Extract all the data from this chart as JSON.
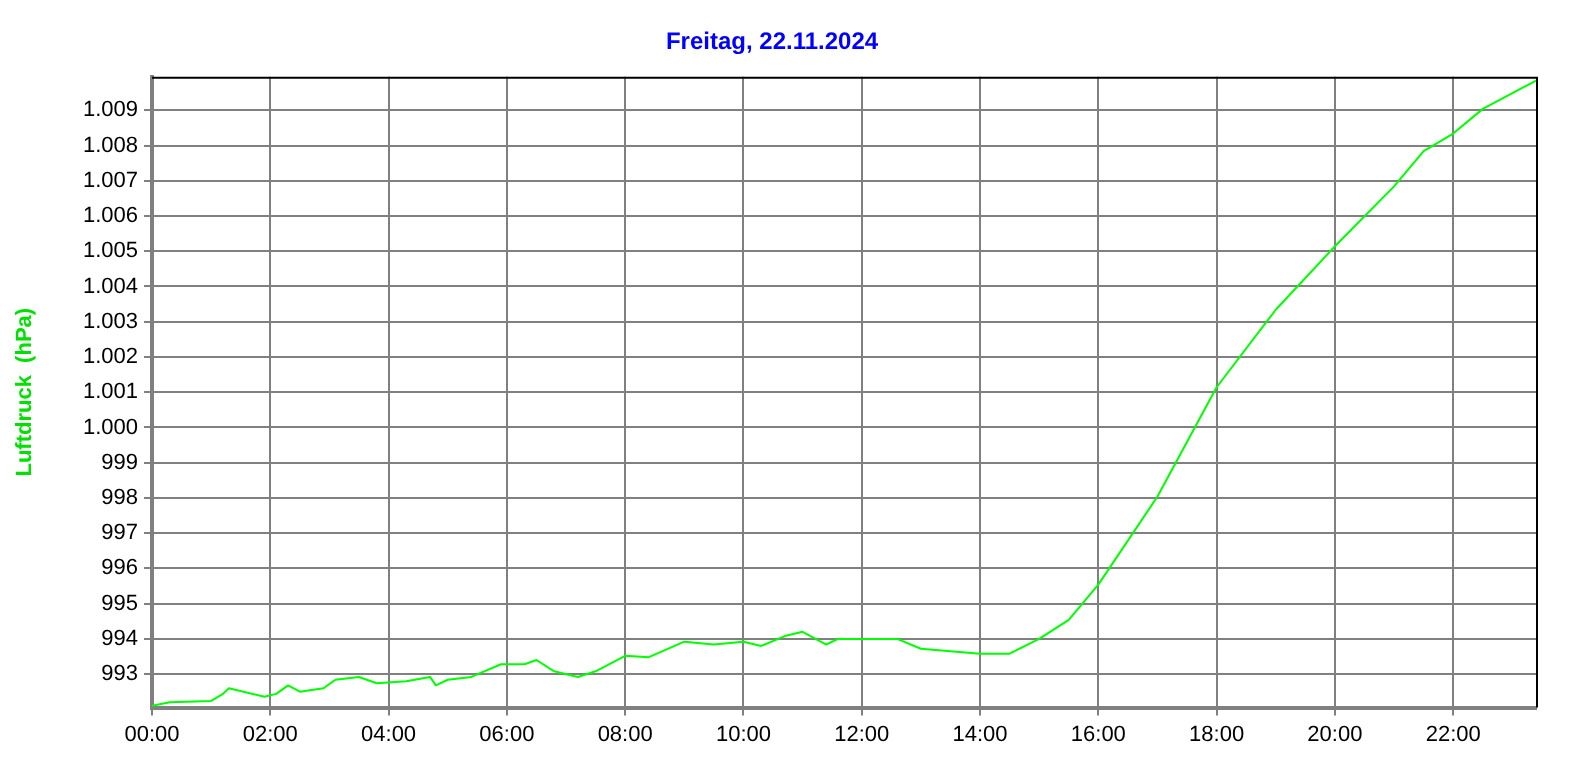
{
  "chart_data": {
    "type": "line",
    "title": "Freitag, 22.11.2024",
    "ylabel": "Luftdruck  (hPa)",
    "x": [
      0,
      0.3,
      1.0,
      1.2,
      1.3,
      1.9,
      2.1,
      2.3,
      2.5,
      2.9,
      3.1,
      3.5,
      3.8,
      4.3,
      4.7,
      4.8,
      5.0,
      5.4,
      5.9,
      6.3,
      6.5,
      6.8,
      7.2,
      7.5,
      8.0,
      8.4,
      9.0,
      9.5,
      10.0,
      10.3,
      10.7,
      11.0,
      11.4,
      11.6,
      12.6,
      13.0,
      14.0,
      14.5,
      15.0,
      15.5,
      16.0,
      17.0,
      18.0,
      19.0,
      20.0,
      21.0,
      21.5,
      22.0,
      22.5,
      23.4
    ],
    "series": [
      {
        "color": "#00ff00",
        "values": [
          992.1,
          992.2,
          992.24,
          992.44,
          992.6,
          992.36,
          992.44,
          992.68,
          992.5,
          992.6,
          992.84,
          992.92,
          992.74,
          992.8,
          992.92,
          992.68,
          992.84,
          992.92,
          993.28,
          993.28,
          993.4,
          993.08,
          992.92,
          993.08,
          993.52,
          993.48,
          993.92,
          993.84,
          993.92,
          993.8,
          994.08,
          994.2,
          993.84,
          994.0,
          994.0,
          993.72,
          993.58,
          993.58,
          994.0,
          994.54,
          995.54,
          998.04,
          1001.14,
          1003.34,
          1005.14,
          1006.84,
          1007.84,
          1008.34,
          1009.04,
          1009.84
        ]
      }
    ],
    "xlim": [
      0,
      23.4
    ],
    "ylim": [
      992.05,
      1009.95
    ],
    "xticks": [
      {
        "value": 0,
        "label": "00:00"
      },
      {
        "value": 2,
        "label": "02:00"
      },
      {
        "value": 4,
        "label": "04:00"
      },
      {
        "value": 6,
        "label": "06:00"
      },
      {
        "value": 8,
        "label": "08:00"
      },
      {
        "value": 10,
        "label": "10:00"
      },
      {
        "value": 12,
        "label": "12:00"
      },
      {
        "value": 14,
        "label": "14:00"
      },
      {
        "value": 16,
        "label": "16:00"
      },
      {
        "value": 18,
        "label": "18:00"
      },
      {
        "value": 20,
        "label": "20:00"
      },
      {
        "value": 22,
        "label": "22:00"
      }
    ],
    "yticks": [
      993,
      994,
      995,
      996,
      997,
      998,
      999,
      {
        "value": 1000,
        "label": "1.000"
      },
      {
        "value": 1001,
        "label": "1.001"
      },
      {
        "value": 1002,
        "label": "1.002"
      },
      {
        "value": 1003,
        "label": "1.003"
      },
      {
        "value": 1004,
        "label": "1.004"
      },
      {
        "value": 1005,
        "label": "1.005"
      },
      {
        "value": 1006,
        "label": "1.006"
      },
      {
        "value": 1007,
        "label": "1.007"
      },
      {
        "value": 1008,
        "label": "1.008"
      },
      {
        "value": 1009,
        "label": "1.009"
      }
    ],
    "grid": true,
    "legend": false,
    "marker": "none",
    "line_style": "solid"
  }
}
